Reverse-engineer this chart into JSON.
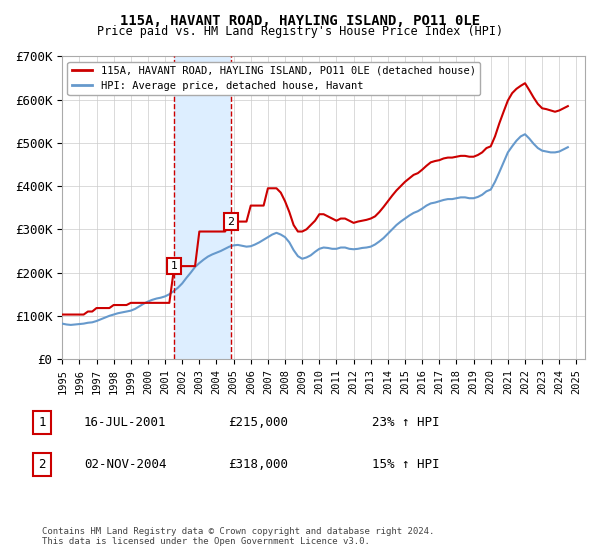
{
  "title": "115A, HAVANT ROAD, HAYLING ISLAND, PO11 0LE",
  "subtitle": "Price paid vs. HM Land Registry's House Price Index (HPI)",
  "ylabel": "",
  "xlabel": "",
  "ylim": [
    0,
    700000
  ],
  "yticks": [
    0,
    100000,
    200000,
    300000,
    400000,
    500000,
    600000,
    700000
  ],
  "ytick_labels": [
    "£0",
    "£100K",
    "£200K",
    "£300K",
    "£400K",
    "£500K",
    "£600K",
    "£700K"
  ],
  "xlim_start": 1995.0,
  "xlim_end": 2025.5,
  "sale1_date": 2001.54,
  "sale1_price": 215000,
  "sale1_label": "1",
  "sale1_text": "16-JUL-2001",
  "sale1_amount": "£215,000",
  "sale1_hpi": "23% ↑ HPI",
  "sale2_date": 2004.84,
  "sale2_price": 318000,
  "sale2_label": "2",
  "sale2_text": "02-NOV-2004",
  "sale2_amount": "£318,000",
  "sale2_hpi": "15% ↑ HPI",
  "shaded_x_start": 2001.54,
  "shaded_x_end": 2004.84,
  "property_color": "#cc0000",
  "hpi_color": "#6699cc",
  "shade_color": "#ddeeff",
  "legend_property": "115A, HAVANT ROAD, HAYLING ISLAND, PO11 0LE (detached house)",
  "legend_hpi": "HPI: Average price, detached house, Havant",
  "footer": "Contains HM Land Registry data © Crown copyright and database right 2024.\nThis data is licensed under the Open Government Licence v3.0.",
  "hpi_data_x": [
    1995.0,
    1995.25,
    1995.5,
    1995.75,
    1996.0,
    1996.25,
    1996.5,
    1996.75,
    1997.0,
    1997.25,
    1997.5,
    1997.75,
    1998.0,
    1998.25,
    1998.5,
    1998.75,
    1999.0,
    1999.25,
    1999.5,
    1999.75,
    2000.0,
    2000.25,
    2000.5,
    2000.75,
    2001.0,
    2001.25,
    2001.5,
    2001.75,
    2002.0,
    2002.25,
    2002.5,
    2002.75,
    2003.0,
    2003.25,
    2003.5,
    2003.75,
    2004.0,
    2004.25,
    2004.5,
    2004.75,
    2005.0,
    2005.25,
    2005.5,
    2005.75,
    2006.0,
    2006.25,
    2006.5,
    2006.75,
    2007.0,
    2007.25,
    2007.5,
    2007.75,
    2008.0,
    2008.25,
    2008.5,
    2008.75,
    2009.0,
    2009.25,
    2009.5,
    2009.75,
    2010.0,
    2010.25,
    2010.5,
    2010.75,
    2011.0,
    2011.25,
    2011.5,
    2011.75,
    2012.0,
    2012.25,
    2012.5,
    2012.75,
    2013.0,
    2013.25,
    2013.5,
    2013.75,
    2014.0,
    2014.25,
    2014.5,
    2014.75,
    2015.0,
    2015.25,
    2015.5,
    2015.75,
    2016.0,
    2016.25,
    2016.5,
    2016.75,
    2017.0,
    2017.25,
    2017.5,
    2017.75,
    2018.0,
    2018.25,
    2018.5,
    2018.75,
    2019.0,
    2019.25,
    2019.5,
    2019.75,
    2020.0,
    2020.25,
    2020.5,
    2020.75,
    2021.0,
    2021.25,
    2021.5,
    2021.75,
    2022.0,
    2022.25,
    2022.5,
    2022.75,
    2023.0,
    2023.25,
    2023.5,
    2023.75,
    2024.0,
    2024.25,
    2024.5
  ],
  "hpi_data_y": [
    82000,
    80000,
    79000,
    80000,
    81000,
    82000,
    84000,
    85000,
    88000,
    92000,
    96000,
    100000,
    103000,
    106000,
    108000,
    110000,
    112000,
    116000,
    122000,
    128000,
    133000,
    137000,
    140000,
    142000,
    145000,
    150000,
    157000,
    165000,
    175000,
    188000,
    200000,
    213000,
    222000,
    230000,
    237000,
    242000,
    246000,
    250000,
    255000,
    260000,
    263000,
    264000,
    262000,
    260000,
    261000,
    265000,
    270000,
    276000,
    282000,
    288000,
    292000,
    288000,
    282000,
    270000,
    252000,
    238000,
    232000,
    235000,
    240000,
    248000,
    255000,
    258000,
    257000,
    255000,
    255000,
    258000,
    258000,
    255000,
    254000,
    255000,
    257000,
    258000,
    260000,
    265000,
    272000,
    280000,
    290000,
    300000,
    310000,
    318000,
    325000,
    332000,
    338000,
    342000,
    348000,
    355000,
    360000,
    362000,
    365000,
    368000,
    370000,
    370000,
    372000,
    374000,
    374000,
    372000,
    372000,
    375000,
    380000,
    388000,
    392000,
    410000,
    432000,
    455000,
    478000,
    492000,
    505000,
    515000,
    520000,
    510000,
    498000,
    488000,
    482000,
    480000,
    478000,
    478000,
    480000,
    485000,
    490000
  ],
  "property_data_x": [
    1995.0,
    1995.25,
    1995.5,
    1995.75,
    1996.0,
    1996.25,
    1996.5,
    1996.75,
    1997.0,
    1997.25,
    1997.5,
    1997.75,
    1998.0,
    1998.25,
    1998.5,
    1998.75,
    1999.0,
    1999.25,
    1999.5,
    1999.75,
    2000.0,
    2000.25,
    2000.5,
    2000.75,
    2001.0,
    2001.25,
    2001.54,
    2001.75,
    2002.0,
    2002.25,
    2002.5,
    2002.75,
    2003.0,
    2003.25,
    2003.5,
    2003.75,
    2004.0,
    2004.25,
    2004.5,
    2004.84,
    2005.0,
    2005.25,
    2005.5,
    2005.75,
    2006.0,
    2006.25,
    2006.5,
    2006.75,
    2007.0,
    2007.25,
    2007.5,
    2007.75,
    2008.0,
    2008.25,
    2008.5,
    2008.75,
    2009.0,
    2009.25,
    2009.5,
    2009.75,
    2010.0,
    2010.25,
    2010.5,
    2010.75,
    2011.0,
    2011.25,
    2011.5,
    2011.75,
    2012.0,
    2012.25,
    2012.5,
    2012.75,
    2013.0,
    2013.25,
    2013.5,
    2013.75,
    2014.0,
    2014.25,
    2014.5,
    2014.75,
    2015.0,
    2015.25,
    2015.5,
    2015.75,
    2016.0,
    2016.25,
    2016.5,
    2016.75,
    2017.0,
    2017.25,
    2017.5,
    2017.75,
    2018.0,
    2018.25,
    2018.5,
    2018.75,
    2019.0,
    2019.25,
    2019.5,
    2019.75,
    2020.0,
    2020.25,
    2020.5,
    2020.75,
    2021.0,
    2021.25,
    2021.5,
    2021.75,
    2022.0,
    2022.25,
    2022.5,
    2022.75,
    2023.0,
    2023.25,
    2023.5,
    2023.75,
    2024.0,
    2024.25,
    2024.5
  ],
  "property_data_y": [
    103000,
    103000,
    103000,
    103000,
    103000,
    103000,
    110000,
    110000,
    118000,
    118000,
    118000,
    118000,
    125000,
    125000,
    125000,
    125000,
    130000,
    130000,
    130000,
    130000,
    130000,
    130000,
    130000,
    130000,
    130000,
    130000,
    215000,
    215000,
    215000,
    215000,
    215000,
    215000,
    295000,
    295000,
    295000,
    295000,
    295000,
    295000,
    295000,
    318000,
    318000,
    318000,
    318000,
    318000,
    355000,
    355000,
    355000,
    355000,
    395000,
    395000,
    395000,
    385000,
    365000,
    340000,
    310000,
    295000,
    295000,
    300000,
    310000,
    320000,
    335000,
    335000,
    330000,
    325000,
    320000,
    325000,
    325000,
    320000,
    315000,
    318000,
    320000,
    322000,
    325000,
    330000,
    340000,
    352000,
    365000,
    378000,
    390000,
    400000,
    410000,
    418000,
    426000,
    430000,
    438000,
    447000,
    455000,
    458000,
    460000,
    464000,
    466000,
    466000,
    468000,
    470000,
    470000,
    468000,
    468000,
    472000,
    478000,
    488000,
    492000,
    515000,
    545000,
    572000,
    598000,
    615000,
    625000,
    632000,
    638000,
    622000,
    605000,
    590000,
    580000,
    578000,
    575000,
    572000,
    575000,
    580000,
    585000
  ]
}
